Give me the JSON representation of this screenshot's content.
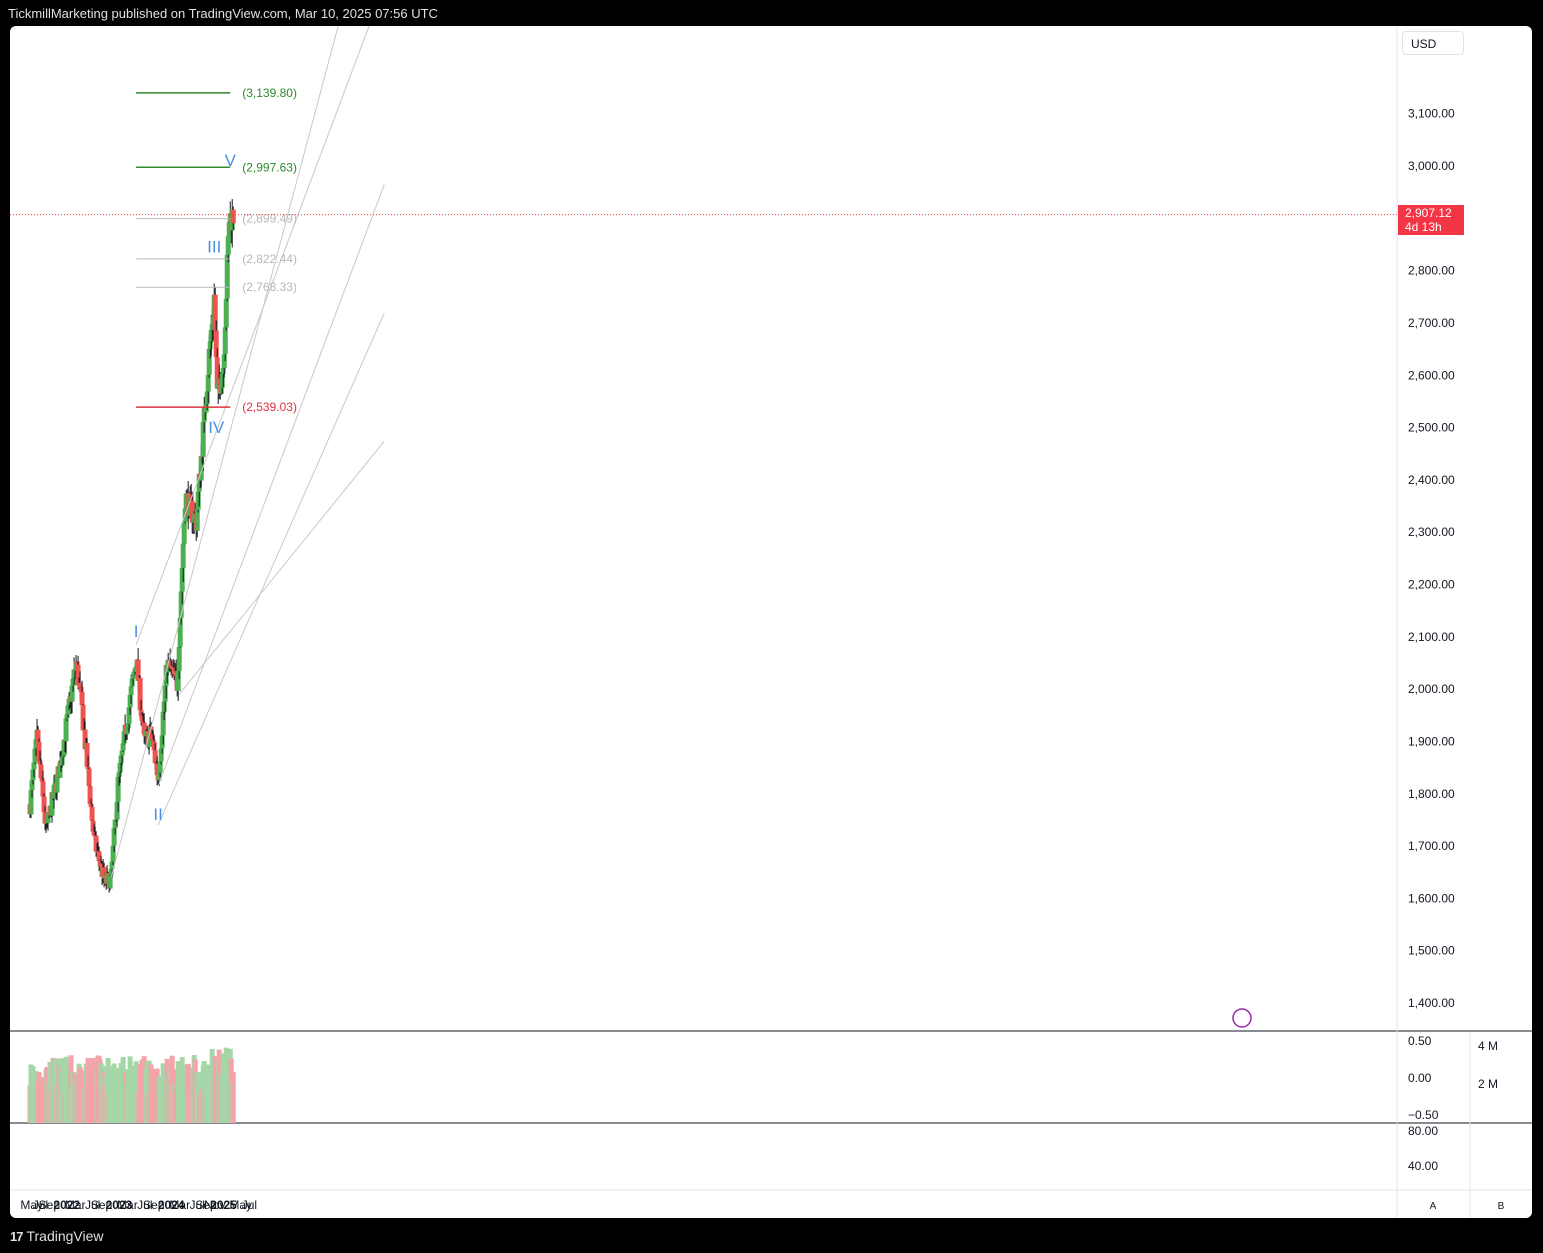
{
  "header": {
    "published": "TickmillMarketing published on TradingView.com, Mar 10, 2025 07:56 UTC"
  },
  "footer": {
    "brand": "TradingView",
    "mark": "17"
  },
  "toolbar": {
    "currency": "USD",
    "scale_a": "A",
    "scale_b": "B"
  },
  "colors": {
    "up": "#4caf50",
    "down": "#ef5350",
    "target": "#2e8b2e",
    "stop": "#e0303c",
    "wave": "#4a90e2"
  },
  "last_price": {
    "value": "2,907.12",
    "countdown": "4d 13h"
  },
  "chart_data": {
    "type": "candlestick",
    "title": "",
    "interval": "weekly",
    "ylim": [
      1360,
      3260
    ],
    "y_ticks": [
      "1,400.00",
      "1,500.00",
      "1,600.00",
      "1,700.00",
      "1,800.00",
      "1,900.00",
      "2,000.00",
      "2,100.00",
      "2,200.00",
      "2,300.00",
      "2,400.00",
      "2,500.00",
      "2,600.00",
      "2,700.00",
      "2,800.00",
      "2,900.00",
      "3,000.00",
      "3,100.00"
    ],
    "x_labels": [
      "May",
      "Jul",
      "Sep",
      "2022",
      "Mar",
      "Jul",
      "Sep",
      "2023",
      "Mar",
      "Jul",
      "Sep",
      "2024",
      "Mar",
      "Jul",
      "Sep",
      "Nov",
      "2025",
      "May",
      "Jul"
    ],
    "anchors": [
      {
        "date": "2021-04-19",
        "price": 1780
      },
      {
        "date": "2021-06-07",
        "price": 1905
      },
      {
        "date": "2021-08-09",
        "price": 1730
      },
      {
        "date": "2021-11-15",
        "price": 1855
      },
      {
        "date": "2022-03-07",
        "price": 2050
      },
      {
        "date": "2022-04-18",
        "price": 1960
      },
      {
        "date": "2022-07-11",
        "price": 1710
      },
      {
        "date": "2022-09-26",
        "price": 1630
      },
      {
        "date": "2022-11-07",
        "price": 1640
      },
      {
        "date": "2022-12-26",
        "price": 1820
      },
      {
        "date": "2023-05-01",
        "price": 2060
      },
      {
        "date": "2023-06-26",
        "price": 1900
      },
      {
        "date": "2023-08-14",
        "price": 1915
      },
      {
        "date": "2023-10-02",
        "price": 1830
      },
      {
        "date": "2023-12-04",
        "price": 2050
      },
      {
        "date": "2024-02-12",
        "price": 2010
      },
      {
        "date": "2024-04-08",
        "price": 2370
      },
      {
        "date": "2024-06-24",
        "price": 2320
      },
      {
        "date": "2024-09-23",
        "price": 2640
      },
      {
        "date": "2024-10-28",
        "price": 2750
      },
      {
        "date": "2024-11-18",
        "price": 2560
      },
      {
        "date": "2024-12-30",
        "price": 2620
      },
      {
        "date": "2025-02-10",
        "price": 2900
      },
      {
        "date": "2025-03-10",
        "price": 2907
      }
    ],
    "fib_levels": [
      {
        "label": "(3,139.80)",
        "value": 3139.8,
        "role": "target"
      },
      {
        "label": "(2,997.63)",
        "value": 2997.63,
        "role": "target"
      },
      {
        "label": "(2,899.49)",
        "value": 2899.49,
        "role": "level"
      },
      {
        "label": "(2,822.44)",
        "value": 2822.44,
        "role": "level"
      },
      {
        "label": "(2,768.33)",
        "value": 2768.33,
        "role": "level"
      },
      {
        "label": "(2,539.03)",
        "value": 2539.03,
        "role": "stop"
      }
    ],
    "waves": [
      {
        "label": "I",
        "date": "2023-05-01",
        "price": 2100
      },
      {
        "label": "II",
        "date": "2023-10-02",
        "price": 1750
      },
      {
        "label": "III",
        "date": "2024-10-28",
        "price": 2835
      },
      {
        "label": "IV",
        "date": "2024-11-11",
        "price": 2490
      },
      {
        "label": "V",
        "date": "2025-02-17",
        "price": 3000
      }
    ],
    "volume_ticks": [
      "0.50",
      "0.00",
      "−0.50"
    ],
    "volume_axis": [
      "4 M",
      "2 M"
    ],
    "osc_ticks": [
      "80.00",
      "40.00"
    ]
  }
}
